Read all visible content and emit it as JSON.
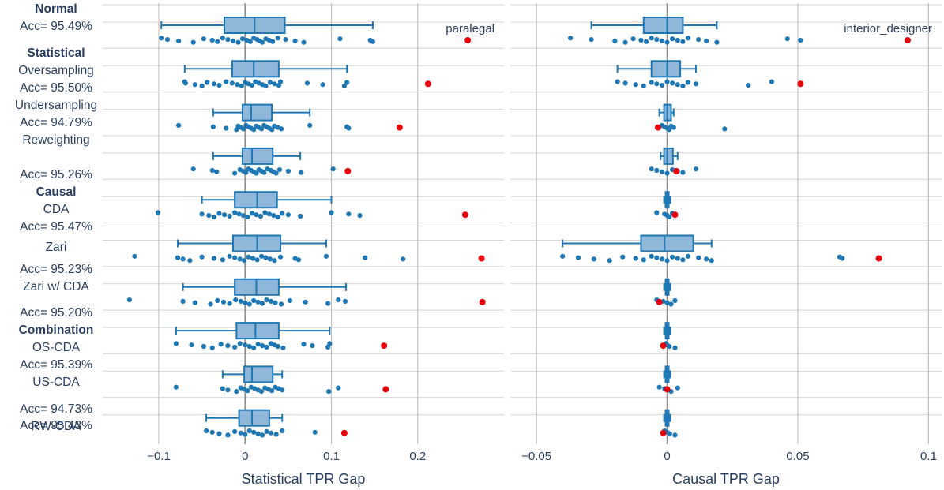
{
  "chart_data": {
    "type": "box",
    "rows": [
      {
        "group": "Normal",
        "method": "",
        "acc": "Acc= 95.49%"
      },
      {
        "group": "Statistical",
        "method": "Oversampling",
        "acc": "Acc= 95.50%"
      },
      {
        "group": "",
        "method": "Undersampling",
        "acc": "Acc= 94.79%"
      },
      {
        "group": "",
        "method": "Reweighting",
        "acc": "Acc= 95.26%"
      },
      {
        "group": "Causal",
        "method": "CDA",
        "acc": "Acc= 95.47%"
      },
      {
        "group": "",
        "method": "Zari",
        "acc": "Acc= 95.23%"
      },
      {
        "group": "",
        "method": "Zari w/ CDA",
        "acc": "Acc= 95.20%"
      },
      {
        "group": "Combination",
        "method": "OS-CDA",
        "acc": "Acc= 95.39%"
      },
      {
        "group": "",
        "method": "US-CDA",
        "acc": "Acc= 94.73%"
      },
      {
        "group": "",
        "method": "RW-CDA",
        "acc": "Acc= 95.43%"
      }
    ],
    "panels": [
      {
        "xlabel": "Statistical TPR Gap",
        "xlim": [
          -0.165,
          0.3
        ],
        "ticks": [
          -0.1,
          0,
          0.1,
          0.2
        ],
        "tick_labels": [
          "−0.1",
          "0",
          "0.1",
          "0.2"
        ],
        "annotation": "paralegal",
        "boxes": [
          {
            "min": -0.097,
            "q1": -0.024,
            "median": 0.011,
            "q3": 0.046,
            "max": 0.148,
            "highlight": 0.258,
            "points": [
              -0.097,
              -0.09,
              -0.077,
              -0.06,
              -0.048,
              -0.038,
              -0.032,
              -0.026,
              -0.02,
              -0.014,
              -0.008,
              -0.003,
              0.002,
              0.006,
              0.01,
              0.014,
              0.017,
              0.02,
              0.024,
              0.028,
              0.032,
              0.038,
              0.047,
              0.058,
              0.068,
              0.11,
              0.145,
              0.148
            ]
          },
          {
            "min": -0.07,
            "q1": -0.015,
            "median": 0.01,
            "q3": 0.039,
            "max": 0.118,
            "highlight": 0.212,
            "points": [
              -0.07,
              -0.069,
              -0.058,
              -0.05,
              -0.044,
              -0.036,
              -0.03,
              -0.022,
              -0.015,
              -0.009,
              -0.004,
              0.0,
              0.004,
              0.008,
              0.012,
              0.016,
              0.02,
              0.024,
              0.029,
              0.034,
              0.039,
              0.041,
              0.072,
              0.09,
              0.115,
              0.118
            ]
          },
          {
            "min": -0.037,
            "q1": -0.003,
            "median": 0.007,
            "q3": 0.031,
            "max": 0.075,
            "highlight": 0.179,
            "points": [
              -0.077,
              -0.037,
              -0.022,
              -0.01,
              -0.008,
              -0.005,
              -0.002,
              0.001,
              0.004,
              0.007,
              0.01,
              0.013,
              0.016,
              0.019,
              0.022,
              0.025,
              0.028,
              0.031,
              0.034,
              0.038,
              0.042,
              0.075,
              0.118,
              0.12
            ]
          },
          {
            "min": -0.037,
            "q1": -0.003,
            "median": 0.008,
            "q3": 0.032,
            "max": 0.064,
            "highlight": 0.119,
            "points": [
              -0.06,
              -0.038,
              -0.033,
              -0.012,
              -0.006,
              -0.002,
              0.001,
              0.004,
              0.007,
              0.01,
              0.013,
              0.016,
              0.019,
              0.022,
              0.026,
              0.03,
              0.033,
              0.036,
              0.04,
              0.05,
              0.065,
              0.102
            ]
          },
          {
            "min": -0.05,
            "q1": -0.012,
            "median": 0.014,
            "q3": 0.037,
            "max": 0.1,
            "highlight": 0.255,
            "points": [
              -0.101,
              -0.05,
              -0.042,
              -0.036,
              -0.03,
              -0.024,
              -0.018,
              -0.012,
              -0.007,
              -0.002,
              0.003,
              0.008,
              0.013,
              0.018,
              0.023,
              0.028,
              0.033,
              0.038,
              0.043,
              0.05,
              0.064,
              0.1,
              0.12,
              0.133
            ]
          },
          {
            "min": -0.078,
            "q1": -0.014,
            "median": 0.014,
            "q3": 0.041,
            "max": 0.094,
            "highlight": 0.274,
            "points": [
              -0.128,
              -0.078,
              -0.072,
              -0.064,
              -0.05,
              -0.036,
              -0.026,
              -0.018,
              -0.012,
              -0.006,
              -0.001,
              0.004,
              0.009,
              0.014,
              0.019,
              0.024,
              0.029,
              0.034,
              0.041,
              0.058,
              0.062,
              0.094,
              0.139,
              0.183
            ]
          },
          {
            "min": -0.072,
            "q1": -0.012,
            "median": 0.013,
            "q3": 0.039,
            "max": 0.117,
            "highlight": 0.275,
            "points": [
              -0.134,
              -0.072,
              -0.058,
              -0.04,
              -0.032,
              -0.025,
              -0.018,
              -0.011,
              -0.005,
              0.0,
              0.005,
              0.01,
              0.015,
              0.02,
              0.025,
              0.03,
              0.035,
              0.042,
              0.052,
              0.07,
              0.096,
              0.108,
              0.116
            ]
          },
          {
            "min": -0.08,
            "q1": -0.01,
            "median": 0.012,
            "q3": 0.039,
            "max": 0.098,
            "highlight": 0.161,
            "points": [
              -0.08,
              -0.062,
              -0.048,
              -0.038,
              -0.028,
              -0.02,
              -0.012,
              -0.006,
              0.0,
              0.005,
              0.01,
              0.015,
              0.02,
              0.025,
              0.03,
              0.034,
              0.038,
              0.044,
              0.068,
              0.078,
              0.096,
              0.098
            ]
          },
          {
            "min": -0.026,
            "q1": -0.001,
            "median": 0.008,
            "q3": 0.032,
            "max": 0.043,
            "highlight": 0.163,
            "points": [
              -0.08,
              -0.026,
              -0.02,
              -0.01,
              -0.005,
              -0.001,
              0.003,
              0.007,
              0.011,
              0.015,
              0.019,
              0.023,
              0.027,
              0.031,
              0.035,
              0.039,
              0.043,
              0.097,
              0.108
            ]
          },
          {
            "min": -0.045,
            "q1": -0.007,
            "median": 0.008,
            "q3": 0.028,
            "max": 0.043,
            "highlight": 0.115,
            "points": [
              -0.045,
              -0.038,
              -0.03,
              -0.02,
              -0.012,
              -0.005,
              0.0,
              0.005,
              0.01,
              0.015,
              0.02,
              0.025,
              0.03,
              0.036,
              0.043,
              0.081
            ]
          }
        ]
      },
      {
        "xlabel": "Causal TPR Gap",
        "xlim": [
          -0.06,
          0.105
        ],
        "ticks": [
          -0.05,
          0,
          0.05,
          0.1
        ],
        "tick_labels": [
          "−0.05",
          "0",
          "0.05",
          "0.1"
        ],
        "annotation": "interior_designer",
        "boxes": [
          {
            "min": -0.029,
            "q1": -0.009,
            "median": 0.0,
            "q3": 0.006,
            "max": 0.019,
            "highlight": 0.092,
            "points": [
              -0.037,
              -0.029,
              -0.02,
              -0.016,
              -0.013,
              -0.01,
              -0.008,
              -0.006,
              -0.004,
              -0.002,
              0.0,
              0.002,
              0.004,
              0.006,
              0.008,
              0.012,
              0.015,
              0.019,
              0.046,
              0.051
            ]
          },
          {
            "min": -0.019,
            "q1": -0.006,
            "median": 0.0,
            "q3": 0.005,
            "max": 0.011,
            "highlight": 0.051,
            "points": [
              -0.019,
              -0.016,
              -0.012,
              -0.009,
              -0.006,
              -0.004,
              -0.002,
              0.0,
              0.002,
              0.004,
              0.006,
              0.008,
              0.011,
              0.031,
              0.04
            ]
          },
          {
            "min": -0.003,
            "q1": -0.0012,
            "median": 0.0,
            "q3": 0.0015,
            "max": 0.0025,
            "highlight": -0.0035,
            "points": [
              -0.002,
              -0.001,
              0.0,
              0.0008,
              0.0015,
              0.0025,
              0.022
            ]
          },
          {
            "min": -0.0025,
            "q1": -0.0012,
            "median": 0.0,
            "q3": 0.0022,
            "max": 0.004,
            "highlight": 0.0035,
            "points": [
              -0.006,
              -0.004,
              -0.002,
              0.0,
              0.002,
              0.004,
              0.006,
              0.011
            ]
          },
          {
            "min": -0.0012,
            "q1": -0.0006,
            "median": 0.0,
            "q3": 0.0006,
            "max": 0.0012,
            "highlight": 0.003,
            "points": [
              -0.004,
              -0.001,
              0.0,
              0.0008,
              0.002
            ]
          },
          {
            "min": -0.04,
            "q1": -0.01,
            "median": -0.001,
            "q3": 0.01,
            "max": 0.017,
            "highlight": 0.081,
            "points": [
              -0.04,
              -0.034,
              -0.028,
              -0.022,
              -0.017,
              -0.012,
              -0.009,
              -0.006,
              -0.004,
              -0.002,
              0.0,
              0.002,
              0.004,
              0.006,
              0.008,
              0.012,
              0.015,
              0.017,
              0.066,
              0.067
            ]
          },
          {
            "min": -0.0012,
            "q1": -0.0006,
            "median": 0.0,
            "q3": 0.0006,
            "max": 0.0012,
            "highlight": -0.003,
            "points": [
              -0.004,
              -0.0015,
              0.0,
              0.0015,
              0.003
            ]
          },
          {
            "min": -0.0012,
            "q1": -0.0006,
            "median": 0.0,
            "q3": 0.0006,
            "max": 0.0012,
            "highlight": -0.0015,
            "points": [
              -0.0005,
              0.0,
              0.0008,
              0.003
            ]
          },
          {
            "min": -0.0012,
            "q1": -0.0006,
            "median": 0.0,
            "q3": 0.0006,
            "max": 0.0012,
            "highlight": 0.0,
            "points": [
              -0.003,
              -0.001,
              0.0,
              0.0015,
              0.004
            ]
          },
          {
            "min": -0.0012,
            "q1": -0.0006,
            "median": 0.0,
            "q3": 0.0006,
            "max": 0.0012,
            "highlight": -0.0015,
            "points": [
              -0.001,
              0.0,
              0.001,
              0.003
            ]
          }
        ]
      }
    ],
    "colors": {
      "box_fill": "#8fb7da",
      "box_line": "#1f77b4",
      "point": "#1f77b4",
      "highlight": "#e8000b",
      "grid": "#bdbdbd",
      "hgrid": "#d4d4d4"
    }
  }
}
